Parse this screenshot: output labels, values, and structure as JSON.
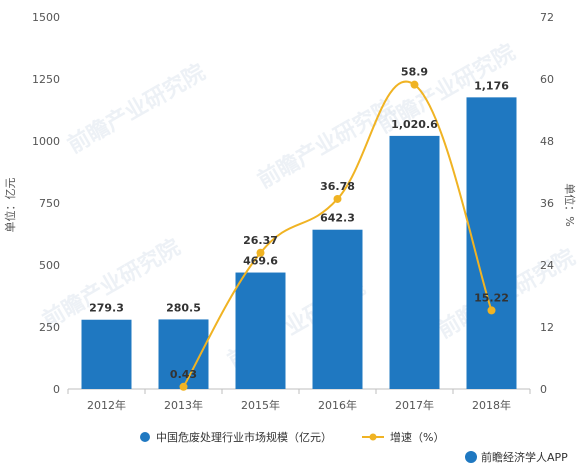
{
  "chart_data": {
    "type": "bar",
    "categories": [
      "2012年",
      "2013年",
      "2015年",
      "2016年",
      "2017年",
      "2018年"
    ],
    "series": [
      {
        "name": "中国危废处理行业市场规模（亿元）",
        "type": "bar",
        "axis": "left",
        "values": [
          279.3,
          280.5,
          469.6,
          642.3,
          1020.6,
          1176
        ],
        "labels": [
          "279.3",
          "280.5",
          "469.6",
          "642.3",
          "1,020.6",
          "1,176"
        ],
        "color": "#1f78c1"
      },
      {
        "name": "增速（%）",
        "type": "line",
        "axis": "right",
        "values": [
          null,
          0.43,
          26.37,
          36.78,
          58.9,
          15.22
        ],
        "labels": [
          "",
          "0.43",
          "26.37",
          "36.78",
          "58.9",
          "15.22"
        ],
        "color": "#f0b323"
      }
    ],
    "ylabel": "单位：亿元",
    "ylabel_right": "单位：%",
    "ylim": [
      0,
      1500
    ],
    "ylim_right": [
      0,
      72
    ],
    "yticks": [
      0,
      250,
      500,
      750,
      1000,
      1250,
      1500
    ],
    "yticks_right": [
      0,
      12,
      24,
      36,
      48,
      60,
      72
    ],
    "legend_placement": "bottom",
    "grid": false
  },
  "source": "前瞻经济学人APP",
  "watermark": "前瞻产业研究院"
}
